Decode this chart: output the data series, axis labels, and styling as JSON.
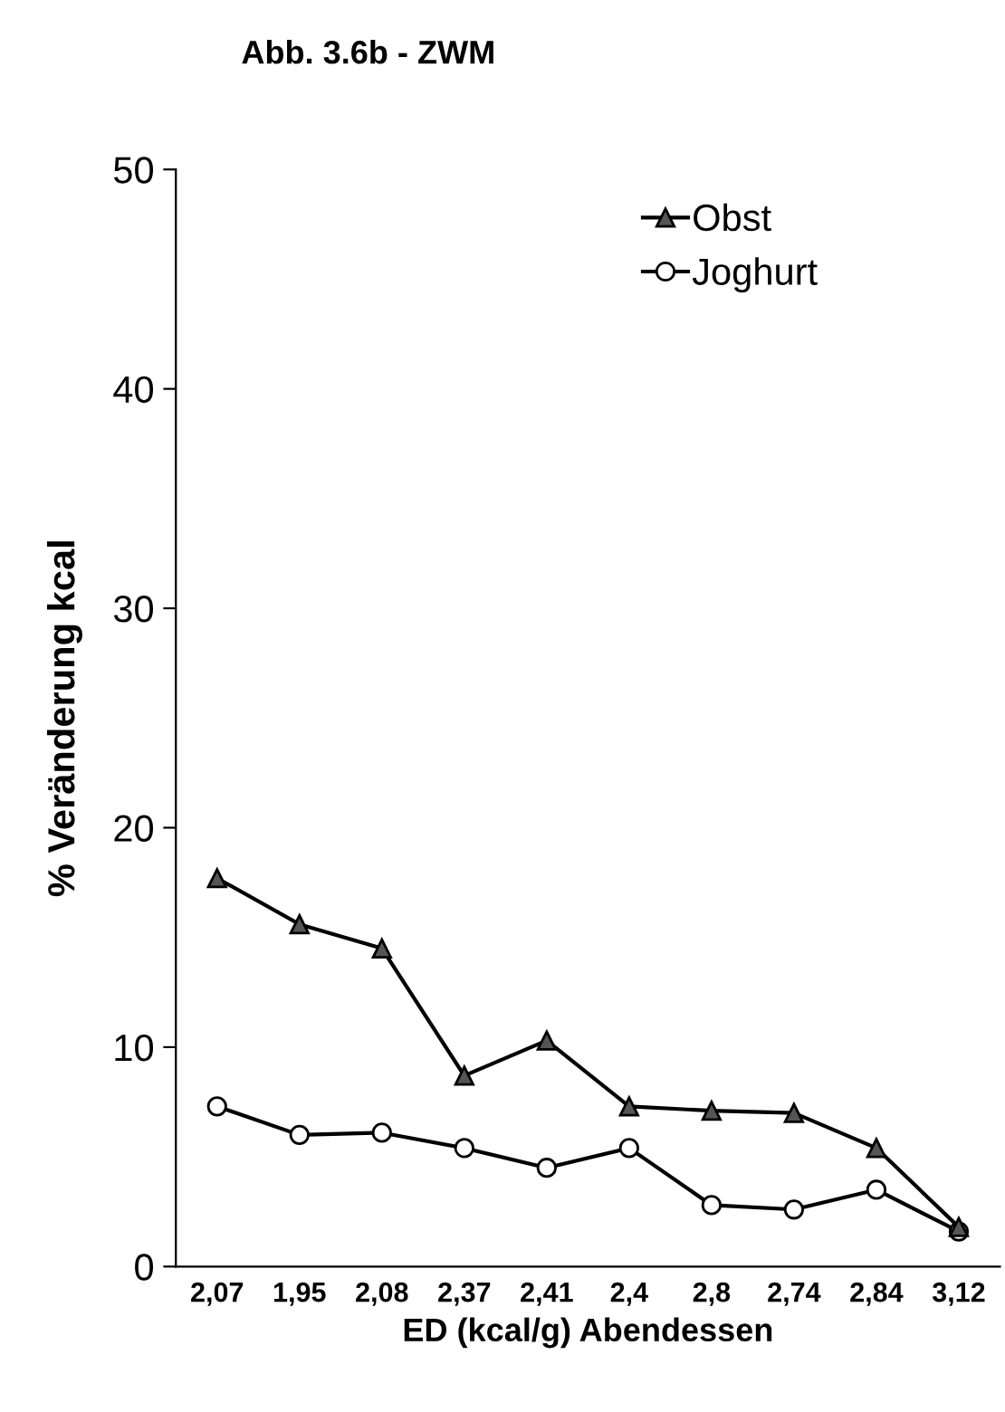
{
  "chart_data": {
    "type": "line",
    "title": "Abb. 3.6b - ZWM",
    "xlabel": "ED (kcal/g) Abendessen",
    "ylabel": "% Veränderung kcal",
    "categories": [
      "2,07",
      "1,95",
      "2,08",
      "2,37",
      "2,41",
      "2,4",
      "2,8",
      "2,74",
      "2,84",
      "3,12"
    ],
    "series": [
      {
        "name": "Obst",
        "color": "#000000",
        "marker": "triangle",
        "values": [
          17.7,
          15.6,
          14.5,
          8.7,
          10.3,
          7.3,
          7.1,
          7.0,
          5.4,
          1.8
        ]
      },
      {
        "name": "Joghurt",
        "color": "#000000",
        "marker": "circle",
        "values": [
          7.3,
          6.0,
          6.1,
          5.4,
          4.5,
          5.4,
          2.8,
          2.6,
          3.5,
          1.6
        ]
      }
    ],
    "ylim": [
      0,
      50
    ],
    "yticks": [
      0,
      10,
      20,
      30,
      40,
      50
    ],
    "grid": false,
    "legend": "top right",
    "line_style": "solid"
  }
}
